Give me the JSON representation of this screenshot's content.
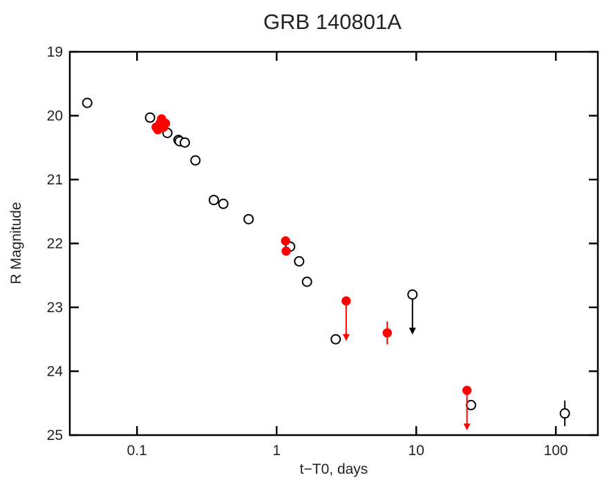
{
  "chart_data": {
    "type": "scatter",
    "title": "GRB 140801A",
    "xlabel": "t−T0, days",
    "ylabel": "R Magnitude",
    "xscale": "log",
    "xlim": [
      0.033,
      200
    ],
    "ylim": [
      19,
      25
    ],
    "y_inverted": true,
    "grid": false,
    "x_ticks": [
      {
        "value": 0.1,
        "label": "0.1"
      },
      {
        "value": 1,
        "label": "1"
      },
      {
        "value": 10,
        "label": "10"
      },
      {
        "value": 100,
        "label": "100"
      }
    ],
    "y_ticks": [
      {
        "value": 19,
        "label": "19"
      },
      {
        "value": 20,
        "label": "20"
      },
      {
        "value": 21,
        "label": "21"
      },
      {
        "value": 22,
        "label": "22"
      },
      {
        "value": 23,
        "label": "23"
      },
      {
        "value": 24,
        "label": "24"
      },
      {
        "value": 25,
        "label": "25"
      }
    ],
    "series": [
      {
        "marker": "open-circle",
        "color": "#000000",
        "points": [
          {
            "x": 0.044,
            "y": 19.8
          },
          {
            "x": 0.124,
            "y": 20.03
          },
          {
            "x": 0.148,
            "y": 20.12
          },
          {
            "x": 0.165,
            "y": 20.27
          },
          {
            "x": 0.198,
            "y": 20.38
          },
          {
            "x": 0.202,
            "y": 20.4
          },
          {
            "x": 0.22,
            "y": 20.42
          },
          {
            "x": 0.262,
            "y": 20.7
          },
          {
            "x": 0.355,
            "y": 21.32
          },
          {
            "x": 0.415,
            "y": 21.38
          },
          {
            "x": 0.63,
            "y": 21.62
          },
          {
            "x": 1.25,
            "y": 22.05
          },
          {
            "x": 1.45,
            "y": 22.28
          },
          {
            "x": 1.65,
            "y": 22.6
          },
          {
            "x": 2.65,
            "y": 23.5
          },
          {
            "x": 9.4,
            "y": 22.8,
            "upper_limit": true
          },
          {
            "x": 24.7,
            "y": 24.53
          },
          {
            "x": 116,
            "y": 24.66,
            "yerr": 0.2
          }
        ]
      },
      {
        "marker": "filled-circle",
        "color": "#ff0000",
        "points": [
          {
            "x": 0.137,
            "y": 20.18
          },
          {
            "x": 0.141,
            "y": 20.22
          },
          {
            "x": 0.146,
            "y": 20.12
          },
          {
            "x": 0.15,
            "y": 20.05
          },
          {
            "x": 0.155,
            "y": 20.18
          },
          {
            "x": 0.16,
            "y": 20.12
          },
          {
            "x": 1.16,
            "y": 21.96
          },
          {
            "x": 1.17,
            "y": 22.12
          },
          {
            "x": 3.15,
            "y": 22.9,
            "upper_limit": true
          },
          {
            "x": 6.2,
            "y": 23.4,
            "yerr": 0.18
          },
          {
            "x": 23.1,
            "y": 24.3,
            "upper_limit": true
          }
        ]
      }
    ]
  }
}
